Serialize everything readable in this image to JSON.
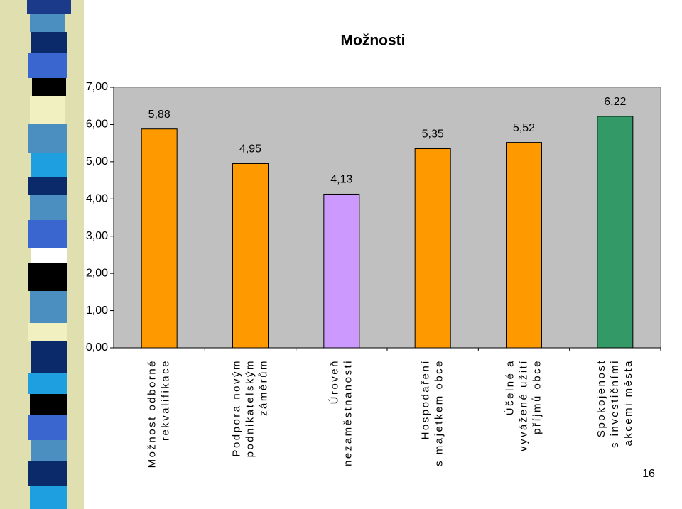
{
  "chart_data": {
    "type": "bar",
    "title": "Možnosti",
    "categories": [
      [
        "Možnost odborné",
        "rekvalifikace"
      ],
      [
        "Podpora novým",
        "podnikatelským",
        "záměrům"
      ],
      [
        "Úroveň",
        "nezaměstnanosti"
      ],
      [
        "Hospodaření",
        "s majetkem obce"
      ],
      [
        "Účelné a",
        "vyvážené užití",
        "příjmů obce"
      ],
      [
        "Spokojenost",
        "s investičními",
        "akcemi města"
      ]
    ],
    "values": [
      5.88,
      4.95,
      4.13,
      5.35,
      5.52,
      6.22
    ],
    "value_labels": [
      "5,88",
      "4,95",
      "4,13",
      "5,35",
      "5,52",
      "6,22"
    ],
    "colors": [
      "#ff9900",
      "#ff9900",
      "#cc99ff",
      "#ff9900",
      "#ff9900",
      "#339966"
    ],
    "ylim": [
      0,
      7
    ],
    "yticks": [
      {
        "value": 0,
        "label": "0,00"
      },
      {
        "value": 1,
        "label": "1,00"
      },
      {
        "value": 2,
        "label": "2,00"
      },
      {
        "value": 3,
        "label": "3,00"
      },
      {
        "value": 4,
        "label": "4,00"
      },
      {
        "value": 5,
        "label": "5,00"
      },
      {
        "value": 6,
        "label": "6,00"
      },
      {
        "value": 7,
        "label": "7,00"
      }
    ],
    "grid": false
  },
  "page_number": "16"
}
